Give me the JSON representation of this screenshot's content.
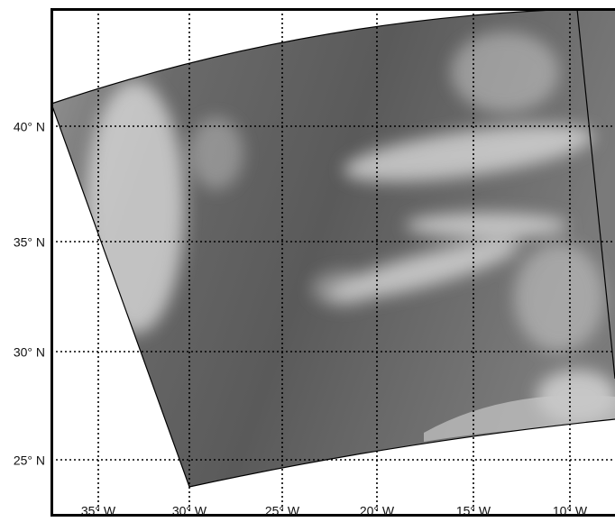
{
  "map": {
    "lon_ticks": [
      {
        "value": -35,
        "label": "35° W"
      },
      {
        "value": -30,
        "label": "30° W"
      },
      {
        "value": -25,
        "label": "25° W"
      },
      {
        "value": -20,
        "label": "20° W"
      },
      {
        "value": -15,
        "label": "15° W"
      },
      {
        "value": -10,
        "label": "10° W"
      }
    ],
    "lat_ticks": [
      {
        "value": 40,
        "label": "40° N"
      },
      {
        "value": 35,
        "label": "35° N"
      },
      {
        "value": 30,
        "label": "30° N"
      },
      {
        "value": 25,
        "label": "25° N"
      }
    ]
  }
}
